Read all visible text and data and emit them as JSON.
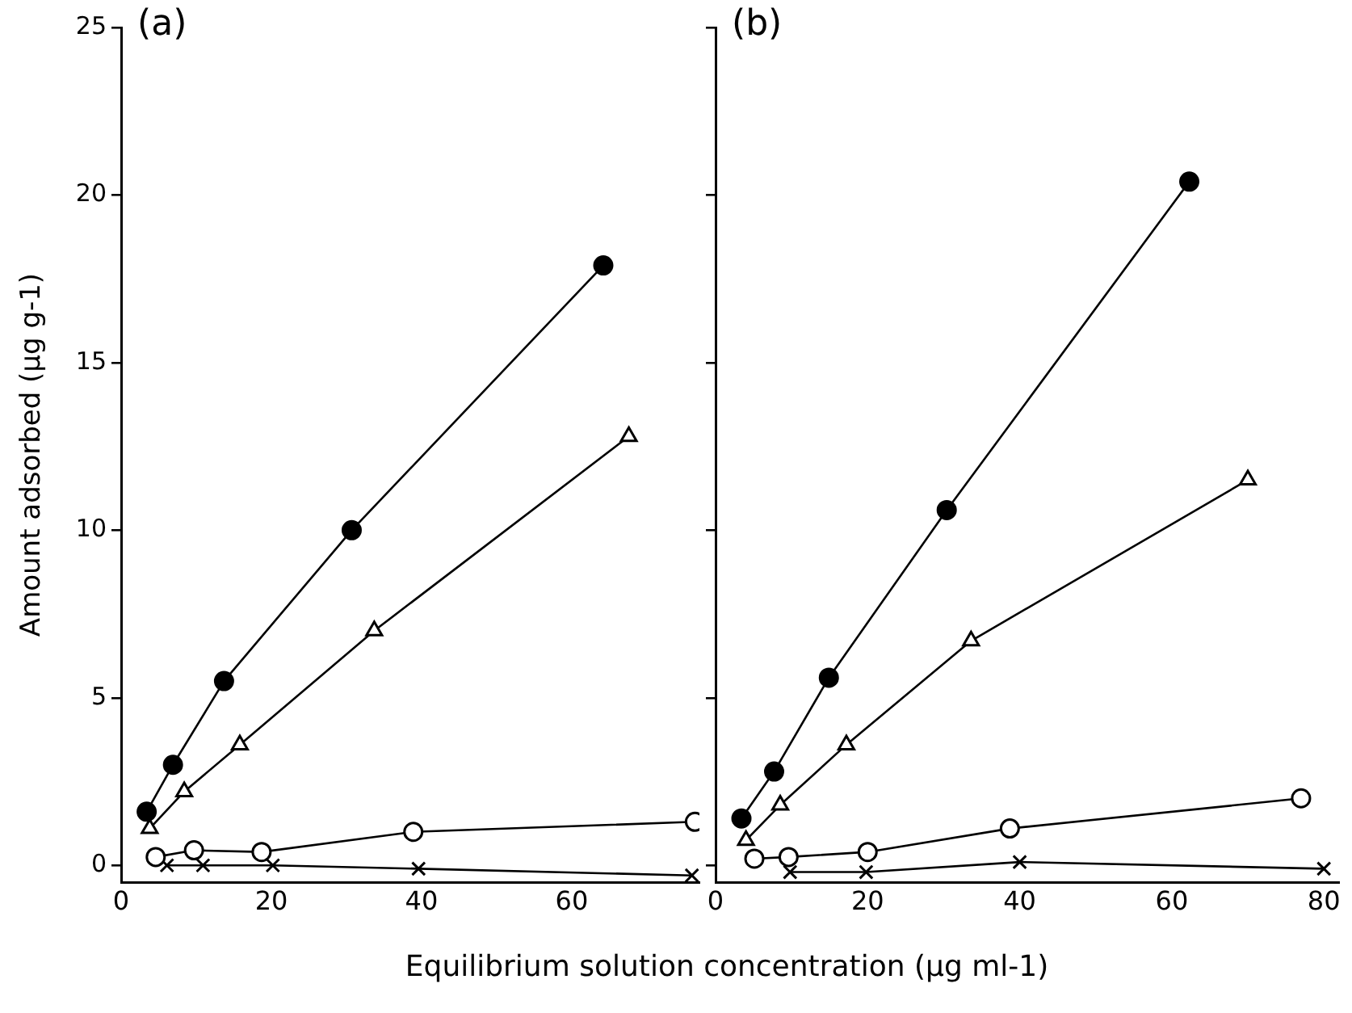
{
  "chart_data": [
    {
      "type": "line",
      "title": "(a)",
      "ylabel": "Amount adsorbed (µg g-1)",
      "xlabel": "Equilibrium solution concentration (µg ml-1)",
      "xlim": [
        0,
        77
      ],
      "xticks": [
        0,
        20,
        40,
        60
      ],
      "ylim": [
        -0.5,
        25
      ],
      "yticks": [
        0,
        5,
        10,
        15,
        20,
        25
      ],
      "grid": false,
      "legend": false,
      "line_style": "solid",
      "series": [
        {
          "color": "#000000",
          "marker": "circle",
          "x": [
            3.4,
            6.9,
            13.7,
            30.7,
            64.2
          ],
          "values": [
            1.6,
            3.0,
            5.5,
            10.0,
            17.9
          ]
        },
        {
          "color": "#000000",
          "marker": "triangle",
          "x": [
            3.8,
            8.4,
            15.8,
            33.7,
            67.6
          ],
          "values": [
            1.1,
            2.2,
            3.6,
            7.0,
            12.8
          ]
        },
        {
          "color": "#000000",
          "marker": "circle",
          "x": [
            4.6,
            9.7,
            18.7,
            38.9,
            76.4
          ],
          "values": [
            0.25,
            0.45,
            0.4,
            1.0,
            1.3
          ]
        },
        {
          "color": "#000000",
          "marker": "cross",
          "x": [
            6.1,
            10.9,
            20.2,
            39.6,
            76
          ],
          "values": [
            0,
            0,
            0,
            -0.1,
            -0.3
          ]
        }
      ]
    },
    {
      "type": "line",
      "title": "(b)",
      "xlim": [
        0,
        82
      ],
      "xticks": [
        0,
        20,
        40,
        60,
        80
      ],
      "ylim": [
        -0.5,
        25
      ],
      "yticks": [
        0,
        5,
        10,
        15,
        20,
        25
      ],
      "tick_labels": "x",
      "grid": false,
      "legend": false,
      "line_style": "solid",
      "series": [
        {
          "color": "#000000",
          "marker": "circle",
          "x": [
            3.4,
            7.7,
            14.9,
            30.4,
            62.3
          ],
          "values": [
            1.4,
            2.8,
            5.6,
            10.6,
            20.4
          ]
        },
        {
          "color": "#000000",
          "marker": "triangle",
          "x": [
            4.0,
            8.5,
            17.2,
            33.6,
            70
          ],
          "values": [
            0.75,
            1.8,
            3.6,
            6.7,
            11.5
          ]
        },
        {
          "color": "#000000",
          "marker": "circle",
          "x": [
            5.1,
            9.6,
            20,
            38.7,
            77
          ],
          "values": [
            0.2,
            0.25,
            0.4,
            1.1,
            2.0
          ]
        },
        {
          "color": "#000000",
          "marker": "cross",
          "x": [
            9.8,
            19.8,
            40,
            80
          ],
          "values": [
            -0.2,
            -0.2,
            0.1,
            -0.1
          ]
        }
      ]
    }
  ]
}
